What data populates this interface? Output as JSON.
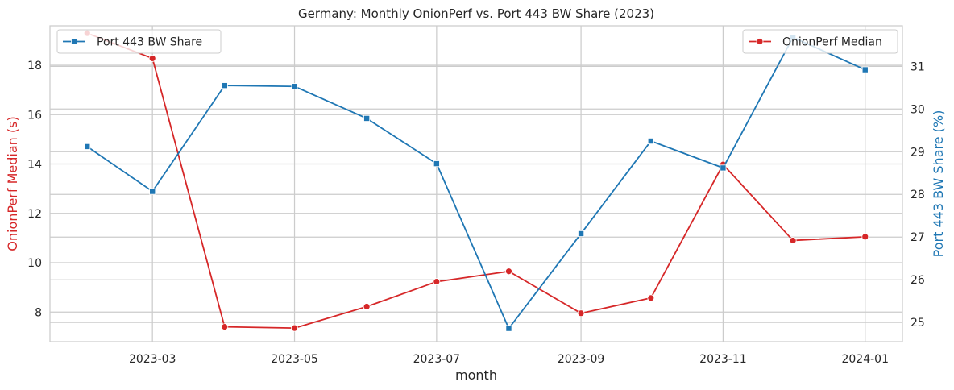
{
  "chart_data": {
    "type": "line",
    "title": "Germany: Monthly OnionPerf vs. Port 443 BW Share (2023)",
    "xlabel": "month",
    "x": [
      "2023-02-01",
      "2023-03-01",
      "2023-04-01",
      "2023-05-01",
      "2023-06-01",
      "2023-07-01",
      "2023-08-01",
      "2023-09-01",
      "2023-10-01",
      "2023-11-01",
      "2023-12-01",
      "2024-01-01"
    ],
    "x_tick_labels": [
      "2023-03",
      "2023-05",
      "2023-07",
      "2023-09",
      "2023-11",
      "2024-01"
    ],
    "x_tick_dates": [
      "2023-03-01",
      "2023-05-01",
      "2023-07-01",
      "2023-09-01",
      "2023-11-01",
      "2024-01-01"
    ],
    "grid": true,
    "series": [
      {
        "name": "OnionPerf Median",
        "axis": "left",
        "ylabel": "OnionPerf Median (s)",
        "color": "#d62728",
        "marker": "circle",
        "ylim": [
          6.8,
          19.6
        ],
        "yticks": [
          8,
          10,
          12,
          14,
          16,
          18
        ],
        "values": [
          19.3,
          18.28,
          7.4,
          7.35,
          8.22,
          9.23,
          9.65,
          7.95,
          8.57,
          13.98,
          10.9,
          11.05
        ]
      },
      {
        "name": "Port 443 BW Share",
        "axis": "right",
        "ylabel": "Port 443 BW Share (%)",
        "color": "#1f77b4",
        "marker": "square",
        "ylim": [
          24.55,
          31.95
        ],
        "yticks": [
          25,
          26,
          27,
          28,
          29,
          30,
          31
        ],
        "values": [
          29.12,
          28.07,
          30.55,
          30.53,
          29.78,
          28.72,
          24.86,
          27.08,
          29.25,
          28.62,
          31.68,
          30.92
        ]
      }
    ],
    "legends": [
      {
        "placement": "upper-left",
        "series": "Port 443 BW Share"
      },
      {
        "placement": "upper-right",
        "series": "OnionPerf Median"
      }
    ]
  }
}
